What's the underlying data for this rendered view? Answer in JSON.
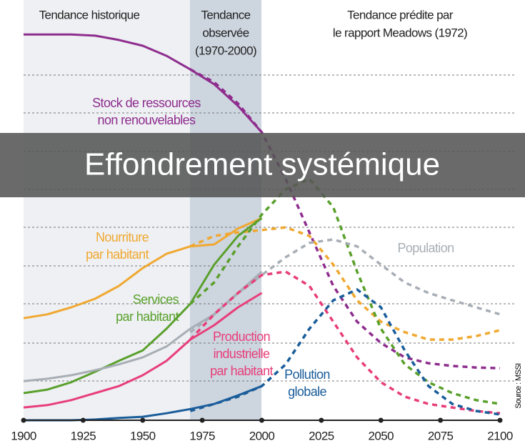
{
  "chart_data": {
    "type": "line",
    "region_labels": [
      [
        "Tendance historique"
      ],
      [
        "Tendance",
        "observée",
        "(1970-2000)"
      ],
      [
        "Tendance prédite par",
        "le rapport Meadows (1972)"
      ]
    ],
    "banner": "Effondrement systémique",
    "source": "Source : MSSI",
    "x": [
      1900,
      1910,
      1920,
      1930,
      1940,
      1950,
      1960,
      1970,
      1980,
      1990,
      2000,
      2010,
      2020,
      2030,
      2040,
      2050,
      2060,
      2070,
      2080,
      2090,
      2100
    ],
    "xlim": [
      1900,
      2100
    ],
    "xticks": [
      1900,
      1925,
      1950,
      1975,
      2000,
      2025,
      2050,
      2075,
      2100
    ],
    "ylim": [
      0,
      100
    ],
    "series": [
      {
        "name": [
          "Stock de ressources",
          "non renouvelables"
        ],
        "color": "#8e2d8e",
        "values": [
          99.4,
          99.4,
          99.4,
          99.1,
          98,
          96.5,
          93.9,
          90.4,
          86.6,
          81,
          74.2,
          null,
          null,
          null,
          null,
          null,
          null,
          null,
          null,
          null,
          null
        ],
        "predicted": [
          null,
          null,
          null,
          null,
          null,
          null,
          null,
          90.4,
          87.1,
          81.6,
          74.2,
          62.2,
          48.4,
          34.6,
          25.4,
          19.9,
          16.2,
          14.7,
          14,
          13.6,
          13.4
        ]
      },
      {
        "name": [
          "Nourriture",
          "par habitant"
        ],
        "color": "#f0a830",
        "values": [
          26.3,
          27.3,
          29.1,
          31.3,
          34.6,
          39.2,
          42.9,
          44.8,
          45.3,
          49.4,
          52.1,
          null,
          null,
          null,
          null,
          null,
          null,
          null,
          null,
          null,
          null
        ],
        "predicted": [
          null,
          null,
          null,
          null,
          null,
          null,
          null,
          44.8,
          47.5,
          48.4,
          49,
          49.7,
          47.5,
          40.1,
          30.9,
          25.4,
          22.7,
          20.8,
          20.8,
          21.7,
          23.2
        ]
      },
      {
        "name": [
          "Services",
          "par habitant"
        ],
        "color": "#5aa02c",
        "values": [
          7,
          7.9,
          9.8,
          12.5,
          15.3,
          18,
          23.6,
          30,
          40.1,
          47.5,
          52.1,
          null,
          null,
          null,
          null,
          null,
          null,
          null,
          null,
          null,
          null
        ],
        "predicted": [
          null,
          null,
          null,
          null,
          null,
          null,
          null,
          30,
          35.5,
          44.8,
          53,
          59.5,
          62.2,
          54.9,
          38.3,
          23.6,
          14.4,
          9.8,
          7,
          5.2,
          4.2
        ]
      },
      {
        "name": [
          "Population"
        ],
        "color": "#a8aeb5",
        "values": [
          10.1,
          10.7,
          11.6,
          12.9,
          14.4,
          16.2,
          19,
          23.6,
          27.3,
          32.8,
          38.3,
          null,
          null,
          null,
          null,
          null,
          null,
          null,
          null,
          null,
          null
        ],
        "predicted": [
          null,
          null,
          null,
          null,
          null,
          null,
          null,
          22.7,
          27.3,
          32.8,
          37.4,
          42,
          45.7,
          46.6,
          44.8,
          40.1,
          35.5,
          32.8,
          30.9,
          29.1,
          27.3
        ]
      },
      {
        "name": [
          "Production",
          "industrielle",
          "par habitant"
        ],
        "color": "#e83e7a",
        "values": [
          3.3,
          3.9,
          5.2,
          7,
          8.8,
          11.6,
          15.3,
          20.8,
          24.5,
          29.1,
          32.8,
          null,
          null,
          null,
          null,
          null,
          null,
          null,
          null,
          null,
          null
        ],
        "predicted": [
          null,
          null,
          null,
          null,
          null,
          null,
          null,
          20.8,
          27.3,
          32.8,
          37.4,
          38.3,
          34.6,
          25.4,
          16.2,
          9.8,
          6.1,
          4.2,
          3.3,
          2.4,
          1.8
        ]
      },
      {
        "name": [
          "Pollution",
          "globale"
        ],
        "color": "#1a5d9a",
        "values": [
          0,
          0,
          0,
          0.2,
          0.6,
          0.9,
          1.8,
          2.9,
          4.2,
          6.4,
          8.8,
          null,
          null,
          null,
          null,
          null,
          null,
          null,
          null,
          null,
          null
        ],
        "predicted": [
          null,
          null,
          null,
          null,
          null,
          null,
          null,
          2.4,
          4.2,
          6.1,
          8.8,
          14.4,
          23.6,
          30.9,
          33.7,
          29.1,
          18,
          8.8,
          4.2,
          2.4,
          1.5
        ]
      }
    ]
  }
}
